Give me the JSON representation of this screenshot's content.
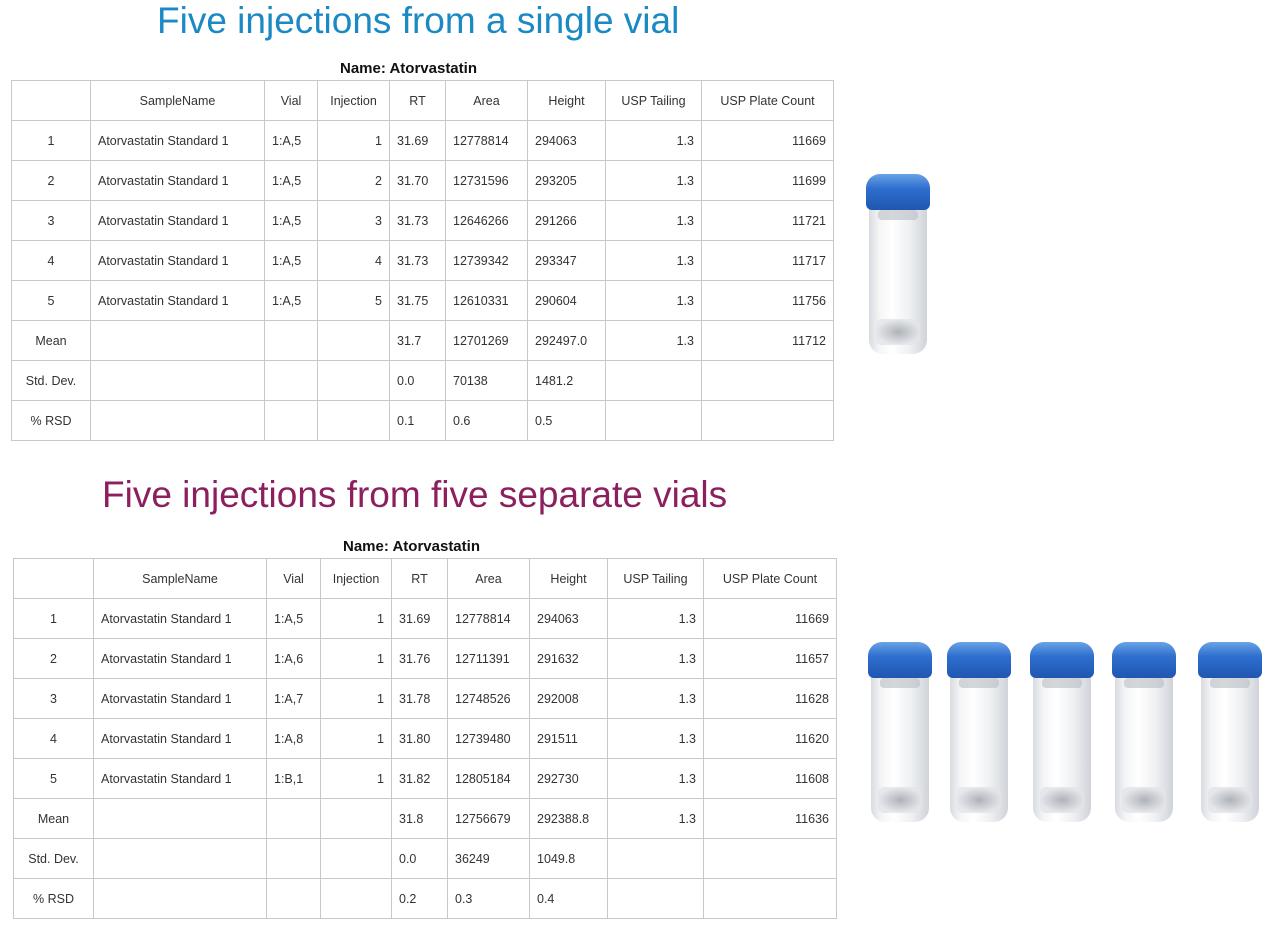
{
  "colors": {
    "title1": "#1a89c4",
    "title2": "#8c1f5e",
    "vial_cap": "#2f6fcf"
  },
  "section1": {
    "title": "Five injections from a single vial",
    "caption": "Name: Atorvastatin",
    "vial_count": 1,
    "headers": [
      "",
      "SampleName",
      "Vial",
      "Injection",
      "RT",
      "Area",
      "Height",
      "USP Tailing",
      "USP Plate Count"
    ],
    "rows": [
      [
        "1",
        "Atorvastatin Standard 1",
        "1:A,5",
        "1",
        "31.69",
        "12778814",
        "294063",
        "1.3",
        "11669"
      ],
      [
        "2",
        "Atorvastatin Standard 1",
        "1:A,5",
        "2",
        "31.70",
        "12731596",
        "293205",
        "1.3",
        "11699"
      ],
      [
        "3",
        "Atorvastatin Standard 1",
        "1:A,5",
        "3",
        "31.73",
        "12646266",
        "291266",
        "1.3",
        "11721"
      ],
      [
        "4",
        "Atorvastatin Standard 1",
        "1:A,5",
        "4",
        "31.73",
        "12739342",
        "293347",
        "1.3",
        "11717"
      ],
      [
        "5",
        "Atorvastatin Standard 1",
        "1:A,5",
        "5",
        "31.75",
        "12610331",
        "290604",
        "1.3",
        "11756"
      ],
      [
        "Mean",
        "",
        "",
        "",
        "31.7",
        "12701269",
        "292497.0",
        "1.3",
        "11712"
      ],
      [
        "Std. Dev.",
        "",
        "",
        "",
        "0.0",
        "70138",
        "1481.2",
        "",
        ""
      ],
      [
        "% RSD",
        "",
        "",
        "",
        "0.1",
        "0.6",
        "0.5",
        "",
        ""
      ]
    ]
  },
  "section2": {
    "title": "Five injections from five separate vials",
    "caption": "Name: Atorvastatin",
    "vial_count": 5,
    "headers": [
      "",
      "SampleName",
      "Vial",
      "Injection",
      "RT",
      "Area",
      "Height",
      "USP Tailing",
      "USP Plate Count"
    ],
    "rows": [
      [
        "1",
        "Atorvastatin Standard 1",
        "1:A,5",
        "1",
        "31.69",
        "12778814",
        "294063",
        "1.3",
        "11669"
      ],
      [
        "2",
        "Atorvastatin Standard 1",
        "1:A,6",
        "1",
        "31.76",
        "12711391",
        "291632",
        "1.3",
        "11657"
      ],
      [
        "3",
        "Atorvastatin Standard 1",
        "1:A,7",
        "1",
        "31.78",
        "12748526",
        "292008",
        "1.3",
        "11628"
      ],
      [
        "4",
        "Atorvastatin Standard 1",
        "1:A,8",
        "1",
        "31.80",
        "12739480",
        "291511",
        "1.3",
        "11620"
      ],
      [
        "5",
        "Atorvastatin Standard 1",
        "1:B,1",
        "1",
        "31.82",
        "12805184",
        "292730",
        "1.3",
        "11608"
      ],
      [
        "Mean",
        "",
        "",
        "",
        "31.8",
        "12756679",
        "292388.8",
        "1.3",
        "11636"
      ],
      [
        "Std. Dev.",
        "",
        "",
        "",
        "0.0",
        "36249",
        "1049.8",
        "",
        ""
      ],
      [
        "% RSD",
        "",
        "",
        "",
        "0.2",
        "0.3",
        "0.4",
        "",
        ""
      ]
    ]
  }
}
